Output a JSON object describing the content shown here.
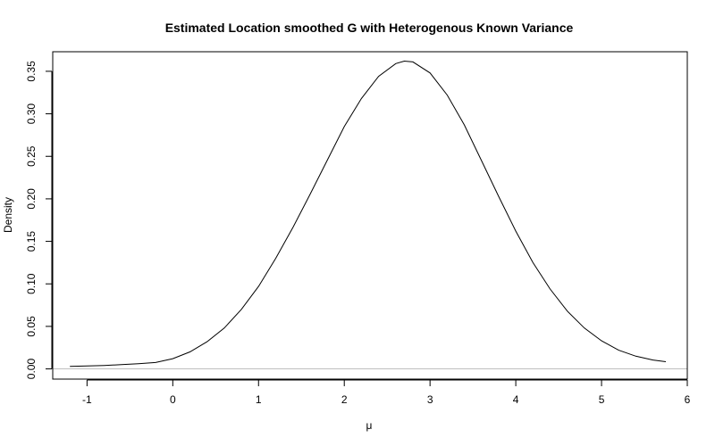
{
  "chart_data": {
    "type": "line",
    "title": "Estimated Location smoothed G with Heterogenous Known Variance",
    "xlabel": "μ",
    "ylabel": "Density",
    "xlim": [
      -1.4,
      6.0
    ],
    "ylim": [
      -0.012,
      0.373
    ],
    "x_ticks": [
      -1,
      0,
      1,
      2,
      3,
      4,
      5,
      6
    ],
    "y_ticks": [
      0.0,
      0.05,
      0.1,
      0.15,
      0.2,
      0.25,
      0.3,
      0.35
    ],
    "x_tick_labels": [
      "-1",
      "0",
      "1",
      "2",
      "3",
      "4",
      "5",
      "6"
    ],
    "y_tick_labels": [
      "0.00",
      "0.05",
      "0.10",
      "0.15",
      "0.20",
      "0.25",
      "0.30",
      "0.35"
    ],
    "reference_line": {
      "y": 0,
      "color": "#bebebe"
    },
    "line_color": "#000000",
    "series": [
      {
        "x": [
          -1.2,
          -1.0,
          -0.8,
          -0.6,
          -0.4,
          -0.2,
          0.0,
          0.2,
          0.4,
          0.6,
          0.8,
          1.0,
          1.2,
          1.4,
          1.6,
          1.8,
          2.0,
          2.2,
          2.4,
          2.6,
          2.7,
          2.8,
          3.0,
          3.2,
          3.4,
          3.6,
          3.8,
          4.0,
          4.2,
          4.4,
          4.6,
          4.8,
          5.0,
          5.2,
          5.4,
          5.6,
          5.75
        ],
        "y": [
          0.003,
          0.0035,
          0.004,
          0.005,
          0.006,
          0.0075,
          0.012,
          0.02,
          0.032,
          0.048,
          0.07,
          0.097,
          0.13,
          0.166,
          0.205,
          0.245,
          0.285,
          0.318,
          0.344,
          0.359,
          0.362,
          0.361,
          0.348,
          0.322,
          0.287,
          0.245,
          0.203,
          0.162,
          0.125,
          0.094,
          0.068,
          0.048,
          0.033,
          0.022,
          0.015,
          0.0105,
          0.0085
        ]
      }
    ]
  }
}
